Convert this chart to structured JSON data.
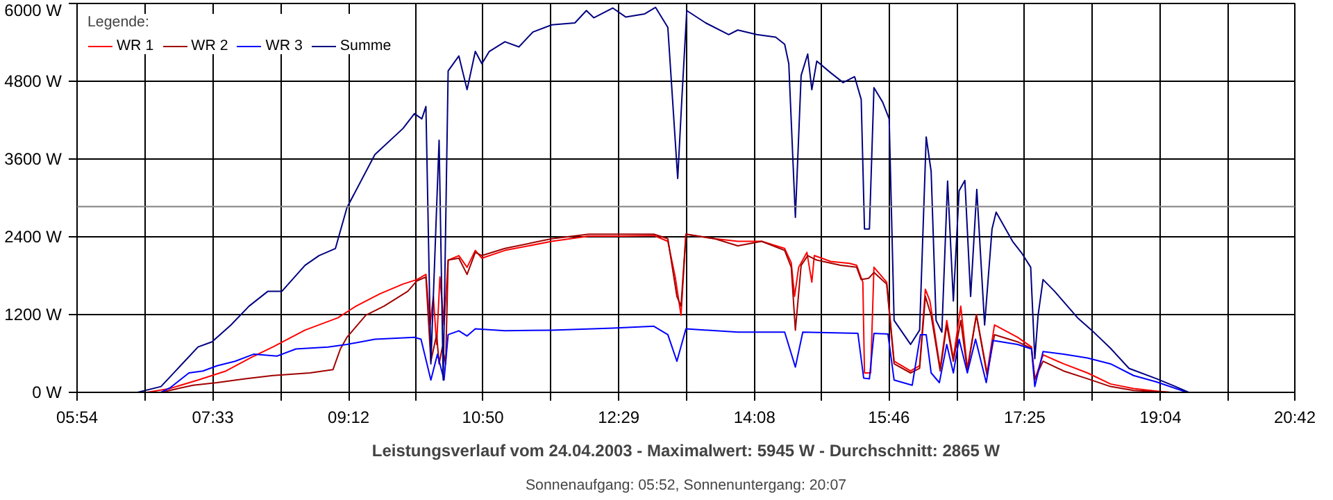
{
  "chart_data": {
    "type": "line",
    "title": "Leistungsverlauf vom 24.04.2003 - Maximalwert: 5945 W - Durchschnitt: 2865 W",
    "subtitle": "Sonnenaufgang: 05:52, Sonnenuntergang: 20:07",
    "legend_title": "Legende:",
    "legend": "top left",
    "grid": true,
    "xlim": [
      5.9,
      20.7
    ],
    "xticks": [
      {
        "value": 5.9,
        "label": "05:54"
      },
      {
        "value": 6.725,
        "label": null
      },
      {
        "value": 7.55,
        "label": "07:33"
      },
      {
        "value": 8.375,
        "label": null
      },
      {
        "value": 9.2,
        "label": "09:12"
      },
      {
        "value": 10.017,
        "label": null
      },
      {
        "value": 10.833,
        "label": "10:50"
      },
      {
        "value": 11.658,
        "label": null
      },
      {
        "value": 12.483,
        "label": "12:29"
      },
      {
        "value": 13.308,
        "label": null
      },
      {
        "value": 14.133,
        "label": "14:08"
      },
      {
        "value": 14.95,
        "label": null
      },
      {
        "value": 15.767,
        "label": "15:46"
      },
      {
        "value": 16.592,
        "label": null
      },
      {
        "value": 17.417,
        "label": "17:25"
      },
      {
        "value": 18.242,
        "label": null
      },
      {
        "value": 19.067,
        "label": "19:04"
      },
      {
        "value": 19.883,
        "label": null
      },
      {
        "value": 20.7,
        "label": "20:42"
      }
    ],
    "ylim": [
      0,
      6000
    ],
    "yticks": [
      {
        "value": 0,
        "label": "0 W"
      },
      {
        "value": 1200,
        "label": "1200 W"
      },
      {
        "value": 2400,
        "label": "2400 W"
      },
      {
        "value": 3600,
        "label": "3600 W"
      },
      {
        "value": 4800,
        "label": "4800 W"
      },
      {
        "value": 6000,
        "label": "6000 W"
      }
    ],
    "ref_lines": [
      {
        "axis": "y",
        "value": 2865,
        "color": "#808080"
      }
    ],
    "series": [
      {
        "name": "WR 1",
        "color": "#ff0000",
        "x": [
          6.75,
          7.03,
          7.37,
          7.71,
          8.05,
          8.28,
          8.67,
          9.07,
          9.29,
          9.58,
          9.86,
          10.03,
          10.14,
          10.19,
          10.23,
          10.27,
          10.31,
          10.36,
          10.41,
          10.54,
          10.64,
          10.74,
          10.82,
          11.1,
          11.67,
          12.12,
          12.52,
          12.91,
          13.08,
          13.17,
          13.24,
          13.3,
          13.65,
          13.93,
          14.22,
          14.5,
          14.58,
          14.62,
          14.67,
          14.77,
          14.83,
          14.86,
          15.06,
          15.29,
          15.375,
          15.45,
          15.47,
          15.545,
          15.585,
          15.74,
          15.83,
          16.03,
          16.14,
          16.21,
          16.265,
          16.39,
          16.47,
          16.55,
          16.64,
          16.72,
          16.83,
          16.96,
          17.05,
          17.33,
          17.5,
          17.54,
          17.64,
          17.89,
          18.18,
          18.46,
          18.74,
          19.02,
          19.19
        ],
        "values": [
          0,
          60,
          190,
          330,
          560,
          700,
          960,
          1150,
          1330,
          1520,
          1670,
          1740,
          1820,
          1040,
          1480,
          740,
          1780,
          1040,
          2040,
          2110,
          1930,
          2190,
          2070,
          2190,
          2330,
          2410,
          2410,
          2420,
          2330,
          1780,
          1190,
          2440,
          2370,
          2330,
          2330,
          2220,
          2000,
          1480,
          1930,
          2160,
          1700,
          2110,
          2020,
          1990,
          1960,
          1700,
          300,
          300,
          1930,
          1700,
          480,
          330,
          410,
          1590,
          1410,
          370,
          1110,
          520,
          1330,
          370,
          1200,
          300,
          1040,
          850,
          700,
          190,
          580,
          440,
          300,
          130,
          60,
          20,
          0
        ]
      },
      {
        "name": "WR 2",
        "color": "#a00000",
        "x": [
          6.92,
          7.31,
          7.6,
          7.94,
          8.28,
          8.73,
          9.01,
          9.1,
          9.18,
          9.41,
          9.63,
          9.92,
          10.03,
          10.14,
          10.2,
          10.27,
          10.3,
          10.34,
          10.38,
          10.41,
          10.54,
          10.64,
          10.74,
          10.82,
          11.1,
          11.67,
          12.12,
          12.52,
          12.91,
          13.08,
          13.19,
          13.24,
          13.3,
          13.65,
          13.93,
          14.22,
          14.5,
          14.58,
          14.63,
          14.7,
          14.78,
          14.89,
          15.18,
          15.375,
          15.43,
          15.52,
          15.585,
          15.74,
          15.83,
          16.03,
          16.14,
          16.21,
          16.28,
          16.39,
          16.47,
          16.55,
          16.64,
          16.72,
          16.83,
          16.96,
          17.05,
          17.33,
          17.5,
          17.54,
          17.64,
          17.89,
          18.18,
          18.46,
          18.74,
          19.19
        ],
        "values": [
          0,
          110,
          150,
          210,
          260,
          300,
          350,
          670,
          850,
          1190,
          1330,
          1560,
          1720,
          1780,
          480,
          890,
          440,
          700,
          440,
          2040,
          2070,
          1820,
          2160,
          2110,
          2220,
          2370,
          2440,
          2440,
          2440,
          2370,
          1480,
          1330,
          2440,
          2370,
          2260,
          2330,
          2190,
          1930,
          960,
          1960,
          2110,
          2040,
          1960,
          1930,
          1740,
          1760,
          1850,
          1670,
          440,
          300,
          370,
          1480,
          1190,
          330,
          1040,
          480,
          1110,
          330,
          1190,
          260,
          890,
          780,
          680,
          210,
          480,
          330,
          210,
          90,
          30,
          0
        ]
      },
      {
        "name": "WR 3",
        "color": "#0000ff",
        "x": [
          6.92,
          7.03,
          7.26,
          7.43,
          7.6,
          7.82,
          8.05,
          8.33,
          8.56,
          8.95,
          9.18,
          9.52,
          10.0,
          10.08,
          10.2,
          10.28,
          10.36,
          10.41,
          10.54,
          10.64,
          10.74,
          11.1,
          11.67,
          12.41,
          12.91,
          13.08,
          13.19,
          13.3,
          13.93,
          14.5,
          14.63,
          14.72,
          15.39,
          15.46,
          15.53,
          15.585,
          15.755,
          15.83,
          16.05,
          16.15,
          16.22,
          16.28,
          16.38,
          16.47,
          16.55,
          16.62,
          16.72,
          16.82,
          16.95,
          17.03,
          17.33,
          17.5,
          17.54,
          17.64,
          17.89,
          18.18,
          18.46,
          18.74,
          19.02,
          19.39
        ],
        "values": [
          0,
          70,
          300,
          330,
          410,
          480,
          590,
          560,
          670,
          700,
          740,
          820,
          850,
          820,
          190,
          590,
          190,
          890,
          950,
          870,
          980,
          950,
          960,
          990,
          1020,
          890,
          480,
          980,
          930,
          930,
          390,
          930,
          910,
          220,
          210,
          910,
          900,
          190,
          110,
          890,
          890,
          300,
          150,
          740,
          300,
          820,
          300,
          820,
          150,
          800,
          740,
          670,
          90,
          630,
          590,
          530,
          440,
          260,
          160,
          0
        ]
      },
      {
        "name": "Summe",
        "color": "#000080",
        "x": [
          6.635,
          6.92,
          7.37,
          7.54,
          7.77,
          7.99,
          8.22,
          8.39,
          8.67,
          8.84,
          9.04,
          9.18,
          9.52,
          9.86,
          10.0,
          10.09,
          10.14,
          10.2,
          10.3,
          10.35,
          10.41,
          10.54,
          10.64,
          10.74,
          10.82,
          10.91,
          11.1,
          11.27,
          11.44,
          11.67,
          11.95,
          12.09,
          12.18,
          12.41,
          12.57,
          12.8,
          12.93,
          13.08,
          13.2,
          13.25,
          13.31,
          13.54,
          13.82,
          13.93,
          14.16,
          14.39,
          14.5,
          14.55,
          14.63,
          14.7,
          14.78,
          14.83,
          14.89,
          15.06,
          15.21,
          15.35,
          15.43,
          15.47,
          15.53,
          15.585,
          15.69,
          15.77,
          15.83,
          16.03,
          16.14,
          16.22,
          16.28,
          16.34,
          16.41,
          16.48,
          16.55,
          16.62,
          16.69,
          16.76,
          16.835,
          16.93,
          17.02,
          17.07,
          17.27,
          17.38,
          17.49,
          17.54,
          17.58,
          17.64,
          17.78,
          18.06,
          18.23,
          18.46,
          18.685,
          19.02,
          19.25,
          19.41
        ],
        "values": [
          0,
          90,
          700,
          780,
          1040,
          1330,
          1560,
          1560,
          1960,
          2110,
          2220,
          2850,
          3670,
          4070,
          4300,
          4220,
          4410,
          440,
          3890,
          190,
          4960,
          5190,
          4670,
          5260,
          5070,
          5260,
          5410,
          5330,
          5560,
          5670,
          5700,
          5890,
          5780,
          5930,
          5790,
          5840,
          5940,
          5630,
          3300,
          4520,
          5890,
          5700,
          5520,
          5590,
          5520,
          5480,
          5370,
          5070,
          2700,
          4890,
          5220,
          4670,
          5110,
          4930,
          4780,
          4870,
          4520,
          2520,
          2520,
          4700,
          4480,
          4220,
          1110,
          740,
          960,
          3940,
          3410,
          1110,
          930,
          3260,
          1410,
          3110,
          3270,
          1480,
          3130,
          1040,
          2520,
          2780,
          2330,
          2150,
          1930,
          520,
          1190,
          1740,
          1560,
          1150,
          960,
          680,
          370,
          210,
          90,
          0
        ]
      }
    ]
  }
}
